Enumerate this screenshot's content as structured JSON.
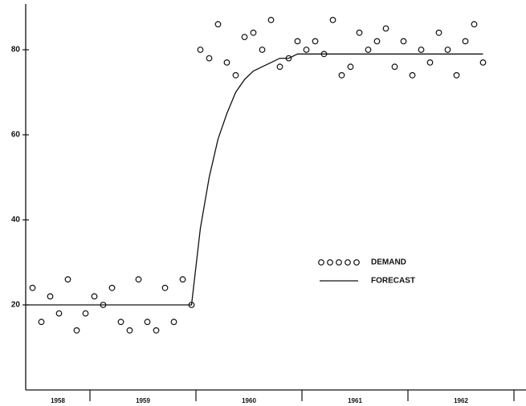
{
  "chart_data": {
    "type": "scatter-line",
    "categories": [
      "1958",
      "1959",
      "1960",
      "1961",
      "1962"
    ],
    "ylim": [
      0,
      90
    ],
    "yticks": [
      20,
      40,
      60,
      80
    ],
    "legend": "center-right",
    "series": [
      {
        "name": "DEMAND",
        "color": "#111111",
        "mark": "circle",
        "values": [
          [
            null,
            null,
            null,
            null,
            null,
            24,
            16,
            22,
            18,
            26,
            14,
            18
          ],
          [
            22,
            20,
            24,
            16,
            14,
            26,
            16,
            14,
            24,
            16,
            26,
            20
          ],
          [
            80,
            78,
            86,
            77,
            74,
            83,
            84,
            80,
            87,
            76,
            78,
            82
          ],
          [
            80,
            82,
            79,
            87,
            74,
            76,
            84,
            80,
            82,
            85,
            76,
            82
          ],
          [
            74,
            80,
            77,
            84,
            80,
            74,
            82,
            86,
            77,
            null,
            null,
            null
          ]
        ]
      },
      {
        "name": "FORECAST",
        "color": "#111111",
        "mark": "line",
        "values": [
          [
            null,
            null,
            null,
            null,
            null,
            20,
            20,
            20,
            20,
            20,
            20,
            20
          ],
          [
            20,
            20,
            20,
            20,
            20,
            20,
            20,
            20,
            20,
            20,
            20,
            20
          ],
          [
            38,
            50,
            59,
            65,
            70,
            73,
            75,
            76,
            77,
            78,
            78,
            79
          ],
          [
            79,
            79,
            79,
            79,
            79,
            79,
            79,
            79,
            79,
            79,
            79,
            79
          ],
          [
            79,
            79,
            79,
            79,
            79,
            79,
            79,
            79,
            79,
            null,
            null,
            null
          ]
        ]
      }
    ]
  }
}
